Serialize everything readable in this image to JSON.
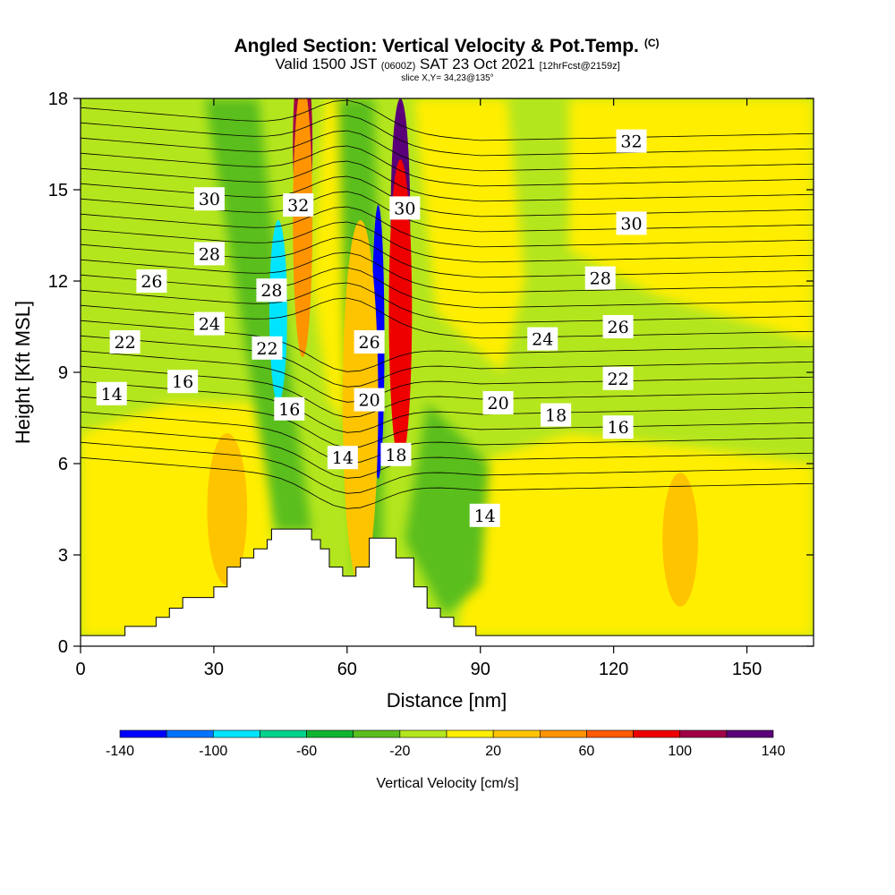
{
  "title": {
    "main": "Angled Section: Vertical Velocity & Pot.Temp.",
    "units_tag": "(C)",
    "valid_prefix": "Valid 1500 JST",
    "valid_utc": "(0600Z)",
    "valid_date": "SAT 23 Oct 2021",
    "forecast_tag": "[12hrFcst@2159z]",
    "slice_info": "slice X,Y= 34,23@135°"
  },
  "chart_data": {
    "type": "heatmap",
    "xlabel": "Distance [nm]",
    "ylabel": "Height [Kft MSL]",
    "xlim": [
      0,
      165
    ],
    "ylim": [
      0,
      18
    ],
    "x_ticks": [
      "0",
      "30",
      "60",
      "90",
      "120",
      "150"
    ],
    "x_tick_values": [
      0,
      30,
      60,
      90,
      120,
      150
    ],
    "y_ticks": [
      "0",
      "3",
      "6",
      "9",
      "12",
      "15",
      "18"
    ],
    "y_tick_values": [
      0,
      3,
      6,
      9,
      12,
      15,
      18
    ],
    "colorbar": {
      "title": "Vertical Velocity [cm/s]",
      "tick_labels": [
        "-140",
        "-100",
        "-60",
        "-20",
        "20",
        "60",
        "100",
        "140"
      ],
      "tick_values": [
        -140,
        -100,
        -60,
        -20,
        20,
        60,
        100,
        140
      ],
      "bounds": [
        -140,
        -120,
        -100,
        -80,
        -60,
        -40,
        -20,
        0,
        20,
        40,
        60,
        80,
        100,
        120,
        140
      ],
      "colors": [
        "#0000ff",
        "#0073ff",
        "#00e5ff",
        "#00d38c",
        "#10b430",
        "#5abe1e",
        "#b4e61e",
        "#ffee00",
        "#ffc400",
        "#ff9400",
        "#ff5a00",
        "#ee0000",
        "#a00046",
        "#5a0078"
      ]
    },
    "background_field": "weak ascent/descent (-20..20 cm/s)",
    "terrain": [
      [
        0,
        0.35
      ],
      [
        10,
        0.35
      ],
      [
        10,
        0.65
      ],
      [
        17,
        0.65
      ],
      [
        17,
        0.95
      ],
      [
        20,
        0.95
      ],
      [
        20,
        1.25
      ],
      [
        23,
        1.25
      ],
      [
        23,
        1.6
      ],
      [
        30,
        1.6
      ],
      [
        30,
        1.95
      ],
      [
        33,
        1.95
      ],
      [
        33,
        2.6
      ],
      [
        36,
        2.6
      ],
      [
        36,
        2.9
      ],
      [
        39,
        2.9
      ],
      [
        39,
        3.2
      ],
      [
        42,
        3.2
      ],
      [
        42,
        3.5
      ],
      [
        43,
        3.5
      ],
      [
        43,
        3.85
      ],
      [
        52,
        3.85
      ],
      [
        52,
        3.5
      ],
      [
        54,
        3.5
      ],
      [
        54,
        3.2
      ],
      [
        56,
        3.2
      ],
      [
        56,
        2.6
      ],
      [
        59,
        2.6
      ],
      [
        59,
        2.3
      ],
      [
        62,
        2.3
      ],
      [
        62,
        2.6
      ],
      [
        65,
        2.6
      ],
      [
        65,
        3.55
      ],
      [
        71,
        3.55
      ],
      [
        71,
        2.9
      ],
      [
        75,
        2.9
      ],
      [
        75,
        1.95
      ],
      [
        78,
        1.95
      ],
      [
        78,
        1.25
      ],
      [
        81,
        1.25
      ],
      [
        81,
        0.95
      ],
      [
        84,
        0.95
      ],
      [
        84,
        0.65
      ],
      [
        89,
        0.65
      ],
      [
        89,
        0.35
      ],
      [
        165,
        0.35
      ]
    ],
    "velocity_features": [
      {
        "x": 50,
        "y": 16.5,
        "rx": 2.2,
        "ry": 3.0,
        "value": 110
      },
      {
        "x": 50,
        "y": 14.0,
        "rx": 2.2,
        "ry": 4.5,
        "value": 50
      },
      {
        "x": 44.5,
        "y": 11.0,
        "rx": 2.0,
        "ry": 3.0,
        "value": -90
      },
      {
        "x": 67,
        "y": 10.0,
        "rx": 1.4,
        "ry": 4.5,
        "value": -130
      },
      {
        "x": 72,
        "y": 14.0,
        "rx": 2.2,
        "ry": 4.0,
        "value": 135
      },
      {
        "x": 72,
        "y": 11.0,
        "rx": 2.6,
        "ry": 5.0,
        "value": 90
      },
      {
        "x": 63,
        "y": 8.0,
        "rx": 4.0,
        "ry": 6.0,
        "value": 25
      },
      {
        "x": 33,
        "y": 4.5,
        "rx": 4.5,
        "ry": 2.5,
        "value": 30
      },
      {
        "x": 135,
        "y": 3.5,
        "rx": 4.0,
        "ry": 2.2,
        "value": 25
      }
    ],
    "contour_labels": [
      {
        "text": "32",
        "x": 49,
        "y": 14.5
      },
      {
        "text": "30",
        "x": 29,
        "y": 14.7
      },
      {
        "text": "30",
        "x": 73,
        "y": 14.4
      },
      {
        "text": "32",
        "x": 124,
        "y": 16.6
      },
      {
        "text": "30",
        "x": 124,
        "y": 13.9
      },
      {
        "text": "28",
        "x": 29,
        "y": 12.9
      },
      {
        "text": "28",
        "x": 43,
        "y": 11.7
      },
      {
        "text": "26",
        "x": 16,
        "y": 12.0
      },
      {
        "text": "28",
        "x": 117,
        "y": 12.1
      },
      {
        "text": "24",
        "x": 29,
        "y": 10.6
      },
      {
        "text": "22",
        "x": 10,
        "y": 10.0
      },
      {
        "text": "22",
        "x": 42,
        "y": 9.8
      },
      {
        "text": "26",
        "x": 65,
        "y": 10.0
      },
      {
        "text": "24",
        "x": 104,
        "y": 10.1
      },
      {
        "text": "26",
        "x": 121,
        "y": 10.5
      },
      {
        "text": "14",
        "x": 7,
        "y": 8.3
      },
      {
        "text": "16",
        "x": 23,
        "y": 8.7
      },
      {
        "text": "16",
        "x": 47,
        "y": 7.8
      },
      {
        "text": "20",
        "x": 65,
        "y": 8.1
      },
      {
        "text": "20",
        "x": 94,
        "y": 8.0
      },
      {
        "text": "22",
        "x": 121,
        "y": 8.8
      },
      {
        "text": "18",
        "x": 107,
        "y": 7.6
      },
      {
        "text": "16",
        "x": 121,
        "y": 7.2
      },
      {
        "text": "14",
        "x": 59,
        "y": 6.2
      },
      {
        "text": "18",
        "x": 71,
        "y": 6.3
      },
      {
        "text": "14",
        "x": 91,
        "y": 4.3
      }
    ]
  }
}
